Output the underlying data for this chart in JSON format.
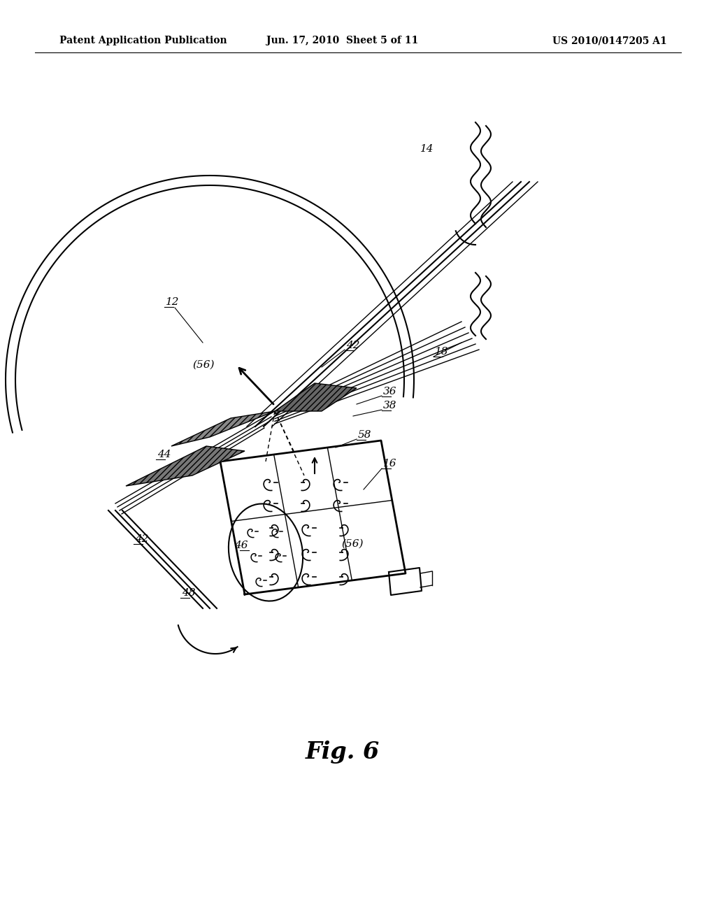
{
  "bg_color": "#ffffff",
  "header_left": "Patent Application Publication",
  "header_center": "Jun. 17, 2010  Sheet 5 of 11",
  "header_right": "US 2010/0147205 A1",
  "fig_label": "Fig. 6",
  "line_color": "#000000"
}
